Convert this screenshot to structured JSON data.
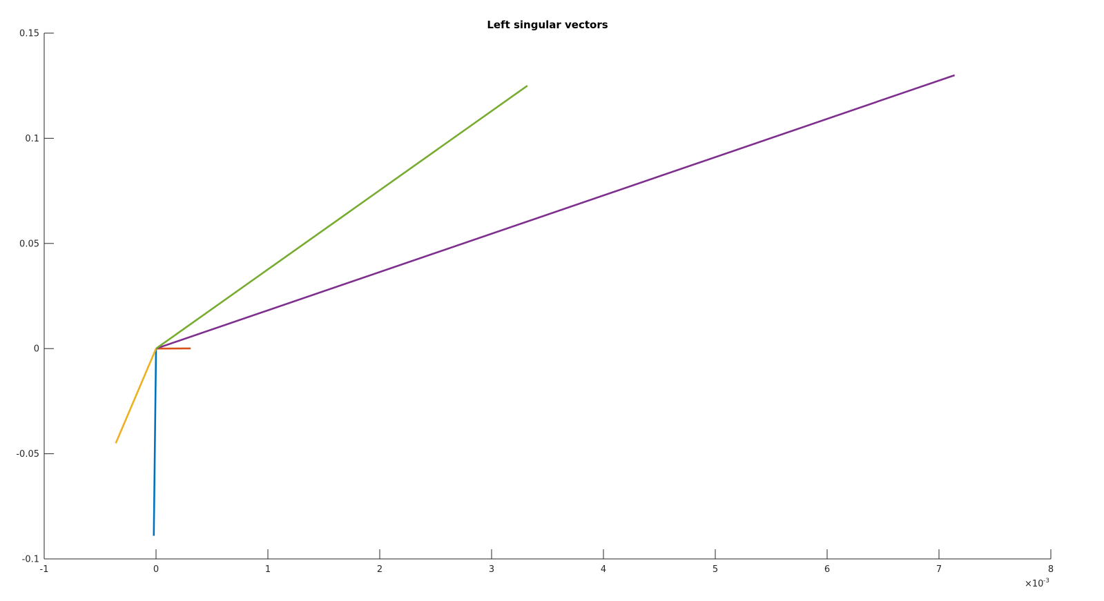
{
  "chart_data": {
    "type": "line",
    "title": "Left singular vectors",
    "xlabel": "",
    "ylabel": "",
    "xlim": [
      -1,
      8
    ],
    "ylim": [
      -0.1,
      0.15
    ],
    "x_exponent": "×10",
    "x_exponent_power": "-3",
    "x_ticks": [
      -1,
      0,
      1,
      2,
      3,
      4,
      5,
      6,
      7,
      8
    ],
    "x_tick_labels": [
      "-1",
      "0",
      "1",
      "2",
      "3",
      "4",
      "5",
      "6",
      "7",
      "8"
    ],
    "y_ticks": [
      -0.1,
      -0.05,
      0,
      0.05,
      0.1,
      0.15
    ],
    "y_tick_labels": [
      "-0.1",
      "-0.05",
      "0",
      "0.05",
      "0.1",
      "0.15"
    ],
    "grid": false,
    "legend": "none",
    "series": [
      {
        "color": "#0072BD",
        "x": [
          0,
          -0.02
        ],
        "y": [
          0,
          -0.089
        ]
      },
      {
        "color": "#D95319",
        "x": [
          0,
          0.31
        ],
        "y": [
          0,
          0.0001
        ]
      },
      {
        "color": "#EDB120",
        "x": [
          0,
          -0.36
        ],
        "y": [
          0,
          -0.045
        ]
      },
      {
        "color": "#7E2F8E",
        "x": [
          0,
          7.14
        ],
        "y": [
          0,
          0.13
        ]
      },
      {
        "color": "#77AC30",
        "x": [
          0,
          3.32
        ],
        "y": [
          0,
          0.125
        ]
      }
    ]
  }
}
